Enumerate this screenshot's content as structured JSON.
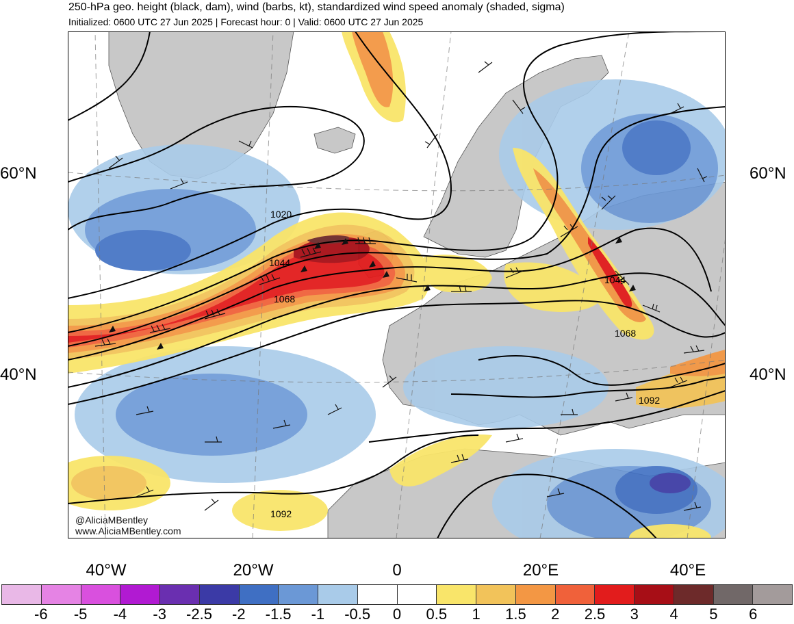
{
  "header": {
    "title": "250-hPa geo. height (black, dam), wind (barbs, kt), standardized wind speed anomaly (shaded, sigma)",
    "subtitle": "Initialized: 0600 UTC 27 Jun 2025 | Forecast hour: 0 | Valid: 0600 UTC 27 Jun 2025"
  },
  "map": {
    "region": "North Atlantic and Europe",
    "lat_labels": [
      "60°N",
      "40°N"
    ],
    "lon_labels": [
      "40°W",
      "20°W",
      "0",
      "20°E",
      "40°E"
    ],
    "contour_labels": [
      "1020",
      "1044",
      "1068",
      "1044",
      "1068",
      "1092",
      "1092"
    ],
    "credits": [
      "@AliciaMBentley",
      "www.AliciaMBentley.com"
    ]
  },
  "colorbar": {
    "ticks": [
      "-6",
      "-5",
      "-4",
      "-3",
      "-2.5",
      "-2",
      "-1.5",
      "-1",
      "-0.5",
      "0",
      "0.5",
      "1",
      "1.5",
      "2",
      "2.5",
      "3",
      "4",
      "5",
      "6"
    ],
    "colors": [
      "#e9b8e7",
      "#e583e4",
      "#d950de",
      "#b11ad2",
      "#6a2fb0",
      "#3b3aa6",
      "#3f6fc3",
      "#6b98d6",
      "#a9cbe9",
      "#ffffff",
      "#ffffff",
      "#f9e56a",
      "#f2c35a",
      "#f39744",
      "#f0613a",
      "#e21c1c",
      "#a70e16",
      "#6d2a2a",
      "#716868",
      "#a39b9b"
    ]
  }
}
